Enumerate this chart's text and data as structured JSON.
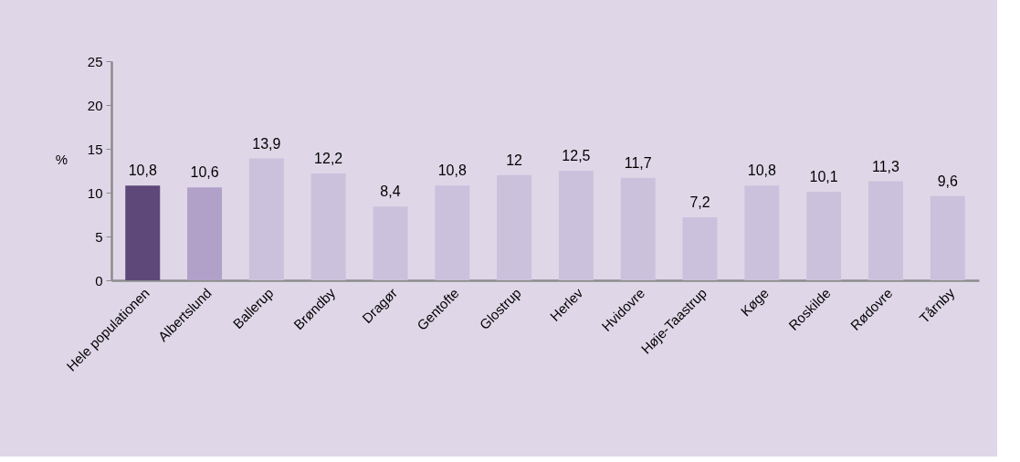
{
  "chart_data": {
    "type": "bar",
    "ylabel": "%",
    "categories": [
      "Hele populationen",
      "Albertslund",
      "Ballerup",
      "Brøndby",
      "Dragør",
      "Gentofte",
      "Glostrup",
      "Herlev",
      "Hvidovre",
      "Høje-Taastrup",
      "Køge",
      "Roskilde",
      "Rødovre",
      "Tårnby"
    ],
    "values": [
      10.8,
      10.6,
      13.9,
      12.2,
      8.4,
      10.8,
      12,
      12.5,
      11.7,
      7.2,
      10.8,
      10.1,
      11.3,
      9.6
    ],
    "value_labels": [
      "10,8",
      "10,6",
      "13,9",
      "12,2",
      "8,4",
      "10,8",
      "12",
      "12,5",
      "11,7",
      "7,2",
      "10,8",
      "10,1",
      "11,3",
      "9,6"
    ],
    "colors": [
      "#5e4879",
      "#b1a1c9",
      "#cbc1dc",
      "#cbc1dc",
      "#cbc1dc",
      "#cbc1dc",
      "#cbc1dc",
      "#cbc1dc",
      "#cbc1dc",
      "#cbc1dc",
      "#cbc1dc",
      "#cbc1dc",
      "#cbc1dc",
      "#cbc1dc"
    ],
    "ylim": [
      0,
      25
    ],
    "yticks": [
      0,
      5,
      10,
      15,
      20,
      25
    ],
    "grid": false
  }
}
